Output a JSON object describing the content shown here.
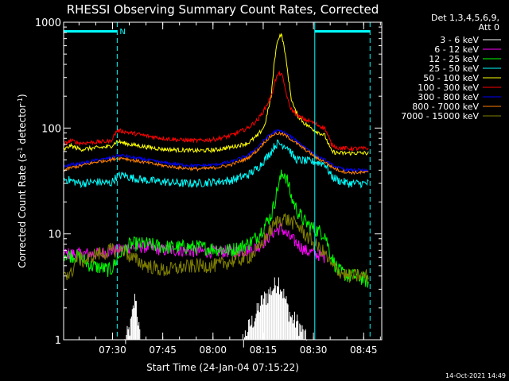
{
  "chart_data": {
    "type": "line",
    "title": "RHESSI Observing Summary Count Rates, Corrected",
    "xlabel": "Start Time (24-Jan-04 07:15:22)",
    "ylabel_main": "Corrected Count Rate (s",
    "ylabel_sup1": "-1",
    "ylabel_mid": " detector",
    "ylabel_sup2": "-1",
    "ylabel_end": ")",
    "yscale": "log",
    "ylim": [
      1,
      1000
    ],
    "xlim_min": [
      0,
      95
    ],
    "x_unit_note": "minutes after 07:15:22",
    "xticks": [
      {
        "t": 14.6,
        "label": "07:30"
      },
      {
        "t": 29.6,
        "label": "07:45"
      },
      {
        "t": 44.6,
        "label": "08:00"
      },
      {
        "t": 59.6,
        "label": "08:15"
      },
      {
        "t": 74.6,
        "label": "08:30"
      },
      {
        "t": 89.6,
        "label": "08:45"
      }
    ],
    "yticks": [
      {
        "v": 1,
        "label": "1"
      },
      {
        "v": 10,
        "label": "10"
      },
      {
        "v": 100,
        "label": "100"
      },
      {
        "v": 1000,
        "label": "1000"
      }
    ],
    "legend_header": [
      "Det 1,3,4,5,6,9,",
      "Att 0"
    ],
    "legend_position": "top-right",
    "timestamp": "14-Oct-2021 14:49",
    "attenuator_marker_label": "N",
    "vertical_markers_min": [
      {
        "t": 0,
        "style": "solid"
      },
      {
        "t": 16,
        "style": "dashed"
      },
      {
        "t": 75,
        "style": "solid"
      },
      {
        "t": 91.5,
        "style": "dashed"
      }
    ],
    "night_bars_min": [
      [
        0,
        16
      ],
      [
        75,
        91.5
      ]
    ],
    "series": [
      {
        "name": "3 - 6 keV",
        "color": "#ffffff",
        "x": [
          18,
          20,
          21.5,
          23,
          53,
          55,
          57,
          59,
          61,
          63,
          64,
          65,
          66,
          67,
          68,
          70,
          72,
          73,
          74
        ],
        "values": [
          1,
          1.5,
          3,
          1,
          1,
          1.4,
          1.8,
          2.5,
          3,
          3.6,
          4.2,
          3.5,
          2.8,
          2.2,
          1.8,
          1.6,
          1.2,
          1,
          1
        ]
      },
      {
        "name": "6 - 12 keV",
        "color": "#ff00ff",
        "x": [
          0,
          5,
          10,
          15,
          16,
          20,
          25,
          30,
          35,
          40,
          45,
          50,
          55,
          58,
          60,
          62,
          64,
          65,
          66,
          67,
          68,
          70,
          72,
          75,
          78
        ],
        "values": [
          6.5,
          6.5,
          6.5,
          7,
          7,
          7.5,
          7.5,
          7,
          7,
          6.8,
          6.8,
          6.8,
          7,
          7.5,
          8.5,
          10,
          11,
          11.2,
          10.5,
          9.5,
          9,
          8,
          7,
          6.5,
          6
        ]
      },
      {
        "name": "12 - 25 keV",
        "color": "#00ff00",
        "x": [
          0,
          5,
          8,
          11,
          14,
          17,
          20,
          25,
          30,
          40,
          50,
          55,
          58,
          60,
          62,
          63,
          64,
          65,
          66,
          67,
          68,
          70,
          72,
          75,
          78,
          80,
          82,
          85,
          88,
          91
        ],
        "values": [
          6.5,
          6,
          5,
          4.8,
          4.5,
          6.5,
          8,
          8,
          7.5,
          7.5,
          7,
          8,
          9.5,
          12,
          15,
          20,
          28,
          35,
          38,
          30,
          22,
          16,
          13,
          11,
          10,
          6,
          4.5,
          4,
          4,
          3.5
        ]
      },
      {
        "name": "25 - 50 keV",
        "color": "#00ffff",
        "x": [
          0,
          2,
          5,
          10,
          14,
          16,
          18,
          20,
          25,
          30,
          35,
          40,
          45,
          50,
          55,
          58,
          60,
          62,
          63,
          64,
          65,
          66,
          67,
          68,
          69,
          70,
          72,
          74,
          75,
          78,
          80,
          82,
          85,
          88,
          91
        ],
        "values": [
          33,
          32,
          30,
          31,
          30,
          35,
          36,
          34,
          32,
          31,
          30,
          30,
          31,
          32,
          36,
          42,
          50,
          60,
          68,
          72,
          70,
          69,
          66,
          58,
          52,
          50,
          49,
          48,
          48,
          46,
          35,
          32,
          30,
          30,
          30
        ]
      },
      {
        "name": "50 - 100 keV",
        "color": "#ffff00",
        "x": [
          0,
          2,
          5,
          10,
          14,
          16,
          18,
          20,
          25,
          30,
          35,
          40,
          45,
          50,
          55,
          58,
          60,
          62,
          63,
          64,
          65,
          66,
          67,
          68,
          69,
          70,
          72,
          74,
          75,
          78,
          80,
          82,
          85,
          88,
          91
        ],
        "values": [
          62,
          68,
          63,
          65,
          67,
          75,
          72,
          70,
          66,
          63,
          62,
          61,
          62,
          66,
          72,
          85,
          105,
          200,
          450,
          700,
          780,
          550,
          320,
          190,
          150,
          130,
          110,
          100,
          95,
          85,
          60,
          58,
          58,
          58,
          58
        ]
      },
      {
        "name": "100 - 300 keV",
        "color": "#ff0000",
        "x": [
          0,
          2,
          5,
          10,
          14,
          16,
          18,
          20,
          25,
          30,
          35,
          40,
          45,
          50,
          55,
          58,
          60,
          62,
          63,
          64,
          65,
          66,
          67,
          68,
          69,
          70,
          72,
          74,
          75,
          78,
          80,
          82,
          85,
          88,
          91
        ],
        "values": [
          70,
          76,
          72,
          74,
          75,
          95,
          93,
          90,
          84,
          80,
          77,
          76,
          78,
          85,
          100,
          120,
          150,
          200,
          270,
          320,
          330,
          250,
          180,
          150,
          140,
          130,
          120,
          115,
          110,
          100,
          70,
          65,
          64,
          64,
          64
        ]
      },
      {
        "name": "300 - 800 keV",
        "color": "#0000ff",
        "x": [
          0,
          2,
          5,
          10,
          14,
          16,
          18,
          20,
          25,
          30,
          35,
          40,
          45,
          50,
          55,
          58,
          60,
          62,
          63,
          64,
          65,
          66,
          67,
          68,
          70,
          72,
          74,
          75,
          78,
          80,
          82,
          85,
          88,
          91
        ],
        "values": [
          43,
          45,
          46,
          50,
          52,
          55,
          55,
          53,
          50,
          47,
          45,
          44,
          45,
          48,
          55,
          66,
          78,
          88,
          92,
          94,
          93,
          90,
          86,
          82,
          74,
          66,
          60,
          55,
          50,
          45,
          42,
          40,
          40,
          39
        ]
      },
      {
        "name": "800 - 7000 keV",
        "color": "#ff8000",
        "x": [
          0,
          2,
          5,
          10,
          14,
          16,
          18,
          20,
          25,
          30,
          35,
          40,
          45,
          50,
          55,
          58,
          60,
          62,
          63,
          64,
          65,
          66,
          67,
          68,
          70,
          72,
          74,
          75,
          78,
          80,
          82,
          85,
          88,
          91
        ],
        "values": [
          40,
          42,
          44,
          48,
          50,
          52,
          52,
          50,
          47,
          44,
          42,
          41,
          42,
          45,
          52,
          62,
          74,
          84,
          88,
          89,
          88,
          86,
          82,
          78,
          70,
          63,
          57,
          53,
          48,
          43,
          40,
          38,
          38,
          38
        ]
      },
      {
        "name": "7000 - 15000 keV",
        "color": "#808000",
        "x": [
          0,
          2,
          4,
          6,
          8,
          10,
          12,
          14,
          16,
          18,
          20,
          25,
          30,
          35,
          40,
          45,
          50,
          55,
          58,
          60,
          62,
          64,
          66,
          68,
          70,
          72,
          75,
          78,
          80,
          82,
          85,
          88,
          91
        ],
        "values": [
          4.5,
          4,
          6,
          5.5,
          6,
          6.5,
          6.5,
          7,
          7,
          7,
          6,
          5,
          4.5,
          4.8,
          5,
          5,
          5.5,
          6,
          7,
          9,
          11,
          13.5,
          14,
          13,
          12,
          10,
          8,
          6.5,
          5,
          4.5,
          4,
          4,
          4
        ]
      }
    ]
  }
}
